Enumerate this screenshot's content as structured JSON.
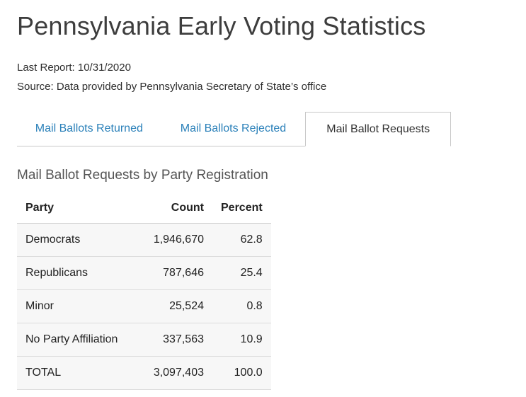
{
  "page": {
    "title": "Pennsylvania Early Voting Statistics",
    "last_report": "Last Report: 10/31/2020",
    "source": "Source: Data provided by Pennsylvania Secretary of State’s office"
  },
  "tabs": [
    {
      "label": "Mail Ballots Returned",
      "active": false
    },
    {
      "label": "Mail Ballots Rejected",
      "active": false
    },
    {
      "label": "Mail Ballot Requests",
      "active": true
    }
  ],
  "section": {
    "heading": "Mail Ballot Requests by Party Registration"
  },
  "table": {
    "columns": [
      "Party",
      "Count",
      "Percent"
    ],
    "rows": [
      {
        "party": "Democrats",
        "count": "1,946,670",
        "percent": "62.8"
      },
      {
        "party": "Republicans",
        "count": "787,646",
        "percent": "25.4"
      },
      {
        "party": "Minor",
        "count": "25,524",
        "percent": "0.8"
      },
      {
        "party": "No Party Affiliation",
        "count": "337,563",
        "percent": "10.9"
      },
      {
        "party": "TOTAL",
        "count": "3,097,403",
        "percent": "100.0"
      }
    ]
  },
  "colors": {
    "tab_link_blue": "#2a80b9",
    "title_text": "#3d3d3d",
    "border_gray": "#c8c8c8",
    "row_background": "#f7f7f7"
  }
}
